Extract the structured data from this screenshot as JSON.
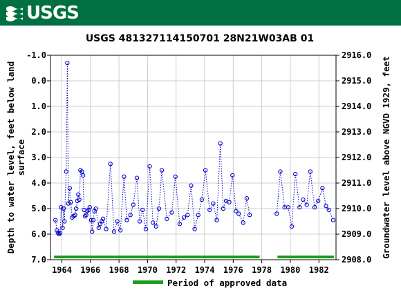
{
  "header": {
    "logo_text": "USGS",
    "logo_icon": "usgs-wave-logo-icon"
  },
  "chart_data": {
    "type": "scatter",
    "title": "USGS 481327114150701 28N21W03AB  01",
    "ylabel_left_lines": [
      "Depth to water level, feet below land",
      "surface"
    ],
    "ylabel_right": "Groundwater level above NGVD 1929, feet",
    "xlabel": "",
    "xlim": [
      1963.2,
      1983.2
    ],
    "ylim_left": [
      7.0,
      -1.0
    ],
    "ylim_right": [
      2908.0,
      2916.0
    ],
    "x_ticks": [
      "1964",
      "1966",
      "1968",
      "1970",
      "1972",
      "1974",
      "1976",
      "1978",
      "1980",
      "1982"
    ],
    "y_ticks_left": [
      "-1.0",
      "0.0",
      "1.0",
      "2.0",
      "3.0",
      "4.0",
      "5.0",
      "6.0",
      "7.0"
    ],
    "y_ticks_right": [
      "2916.0",
      "2915.0",
      "2914.0",
      "2913.0",
      "2912.0",
      "2911.0",
      "2910.0",
      "2909.0",
      "2908.0"
    ],
    "grid": true,
    "colors": {
      "series": "#0000cc",
      "approved": "#1a9c1a",
      "grid": "#cccccc"
    },
    "legend": {
      "label": "Period of approved data",
      "placement": "bottom"
    },
    "approved_periods": [
      [
        1963.45,
        1977.85
      ],
      [
        1979.1,
        1983.05
      ]
    ],
    "segments": [
      [
        [
          1963.55,
          5.45
        ],
        [
          1963.65,
          5.85
        ],
        [
          1963.72,
          5.95
        ],
        [
          1963.8,
          6.0
        ],
        [
          1963.88,
          5.95
        ],
        [
          1963.95,
          4.95
        ],
        [
          1964.05,
          5.75
        ],
        [
          1964.12,
          5.0
        ],
        [
          1964.18,
          5.5
        ],
        [
          1964.3,
          3.55
        ],
        [
          1964.38,
          -0.7
        ],
        [
          1964.45,
          4.8
        ],
        [
          1964.55,
          4.2
        ],
        [
          1964.62,
          4.75
        ],
        [
          1964.72,
          5.35
        ],
        [
          1964.82,
          5.3
        ],
        [
          1964.92,
          5.25
        ],
        [
          1965.0,
          5.0
        ],
        [
          1965.08,
          4.7
        ],
        [
          1965.15,
          4.45
        ],
        [
          1965.22,
          4.65
        ],
        [
          1965.3,
          3.5
        ],
        [
          1965.4,
          3.55
        ],
        [
          1965.48,
          3.7
        ],
        [
          1965.55,
          5.05
        ],
        [
          1965.62,
          5.3
        ],
        [
          1965.7,
          5.25
        ],
        [
          1965.78,
          5.1
        ],
        [
          1965.88,
          5.05
        ],
        [
          1965.95,
          4.95
        ],
        [
          1966.05,
          5.45
        ],
        [
          1966.12,
          5.9
        ],
        [
          1966.2,
          5.45
        ],
        [
          1966.28,
          5.1
        ],
        [
          1966.38,
          5.0
        ],
        [
          1966.58,
          5.75
        ],
        [
          1966.68,
          5.6
        ],
        [
          1966.8,
          5.5
        ],
        [
          1966.88,
          5.4
        ],
        [
          1967.1,
          5.8
        ],
        [
          1967.4,
          3.25
        ],
        [
          1967.65,
          5.9
        ],
        [
          1967.88,
          5.5
        ],
        [
          1968.1,
          5.85
        ],
        [
          1968.35,
          3.75
        ],
        [
          1968.55,
          5.45
        ],
        [
          1968.8,
          5.25
        ],
        [
          1969.0,
          4.85
        ],
        [
          1969.25,
          3.8
        ],
        [
          1969.45,
          5.5
        ],
        [
          1969.65,
          5.05
        ],
        [
          1969.88,
          5.8
        ],
        [
          1970.15,
          3.35
        ],
        [
          1970.38,
          5.55
        ],
        [
          1970.6,
          5.7
        ],
        [
          1970.8,
          5.0
        ],
        [
          1971.0,
          3.5
        ],
        [
          1971.35,
          5.4
        ],
        [
          1971.7,
          5.15
        ],
        [
          1971.95,
          3.75
        ],
        [
          1972.25,
          5.6
        ],
        [
          1972.55,
          5.35
        ],
        [
          1972.8,
          5.25
        ],
        [
          1973.05,
          4.1
        ],
        [
          1973.3,
          5.8
        ],
        [
          1973.55,
          5.25
        ],
        [
          1973.8,
          4.65
        ],
        [
          1974.05,
          3.5
        ],
        [
          1974.35,
          5.05
        ],
        [
          1974.6,
          4.8
        ],
        [
          1974.85,
          5.45
        ],
        [
          1975.1,
          2.45
        ],
        [
          1975.3,
          5.0
        ],
        [
          1975.5,
          4.7
        ],
        [
          1975.72,
          4.75
        ],
        [
          1975.95,
          3.7
        ],
        [
          1976.2,
          5.1
        ],
        [
          1976.38,
          5.2
        ],
        [
          1976.7,
          5.55
        ],
        [
          1976.95,
          4.6
        ],
        [
          1977.15,
          5.25
        ]
      ],
      [
        [
          1979.05,
          5.2
        ],
        [
          1979.3,
          3.55
        ],
        [
          1979.6,
          4.95
        ],
        [
          1979.85,
          4.95
        ],
        [
          1980.1,
          5.7
        ],
        [
          1980.35,
          3.65
        ],
        [
          1980.65,
          4.95
        ],
        [
          1980.9,
          4.65
        ],
        [
          1981.15,
          4.85
        ],
        [
          1981.4,
          3.55
        ],
        [
          1981.7,
          4.95
        ],
        [
          1981.95,
          4.7
        ],
        [
          1982.25,
          4.2
        ],
        [
          1982.5,
          4.9
        ],
        [
          1982.7,
          5.05
        ],
        [
          1983.0,
          5.45
        ]
      ]
    ]
  }
}
